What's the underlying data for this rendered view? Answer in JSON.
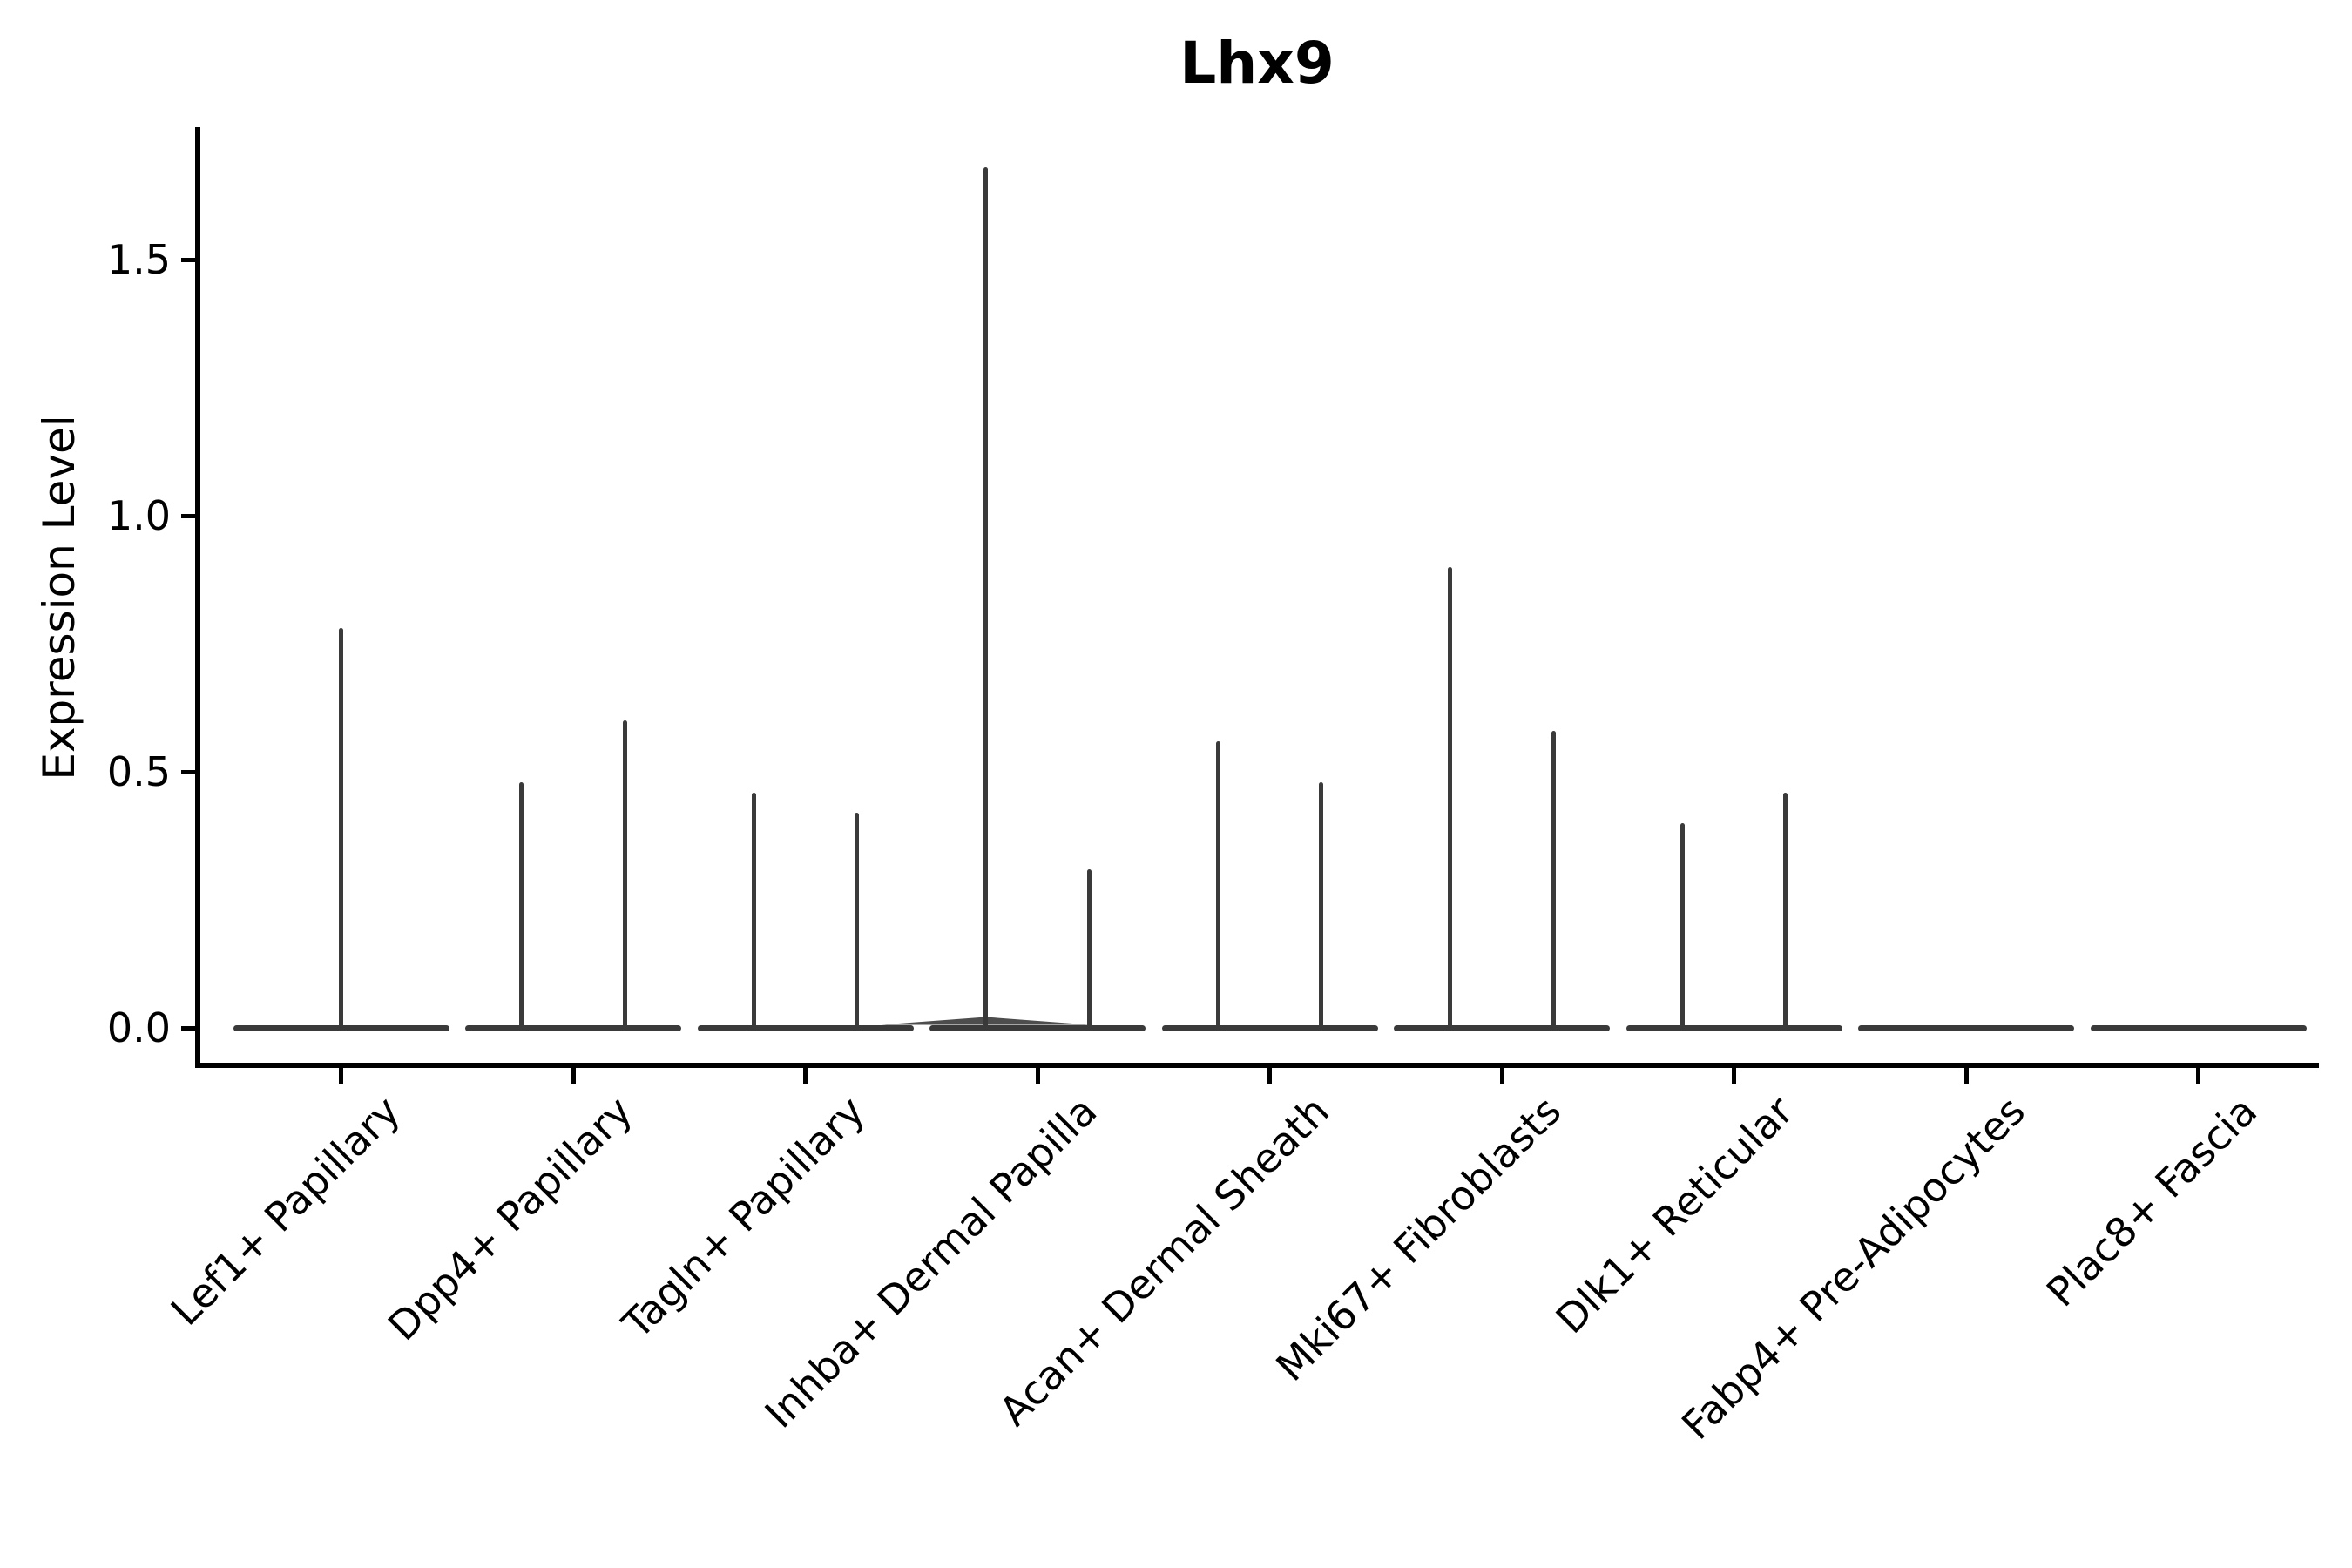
{
  "chart_data": {
    "type": "violin",
    "title": "Lhx9",
    "xlabel": "",
    "ylabel": "Expression Level",
    "ylim": [
      -0.07,
      1.78
    ],
    "yticks": [
      0.0,
      0.5,
      1.0,
      1.5
    ],
    "ytick_labels": [
      "0.0",
      "0.5",
      "1.0",
      "1.5"
    ],
    "grid": false,
    "legend": "none",
    "violin_line_color": "#3a3a3a",
    "axis_color": "#000000",
    "background_color": "#ffffff",
    "categories": [
      "Lef1+ Papillary",
      "Dpp4+ Papillary",
      "Tagln+ Papillary",
      "Inhba+ Dermal Papilla",
      "Acan+ Dermal Sheath",
      "Mki67+ Fibroblasts",
      "Dlk1+ Reticular",
      "Fabp4+ Pre-Adipocytes",
      "Plac8+ Fascia"
    ],
    "series": [
      {
        "category": "Lef1+ Papillary",
        "spike_values": [
          0.78
        ],
        "spike_offsets": [
          0
        ],
        "bulge_spike_index": null
      },
      {
        "category": "Dpp4+ Papillary",
        "spike_values": [
          0.48,
          0.6
        ],
        "spike_offsets": [
          -0.223,
          0.223
        ],
        "bulge_spike_index": null
      },
      {
        "category": "Tagln+ Papillary",
        "spike_values": [
          0.46,
          0.42
        ],
        "spike_offsets": [
          -0.223,
          0.223
        ],
        "bulge_spike_index": null
      },
      {
        "category": "Inhba+ Dermal Papilla",
        "spike_values": [
          1.68,
          0.31
        ],
        "spike_offsets": [
          -0.223,
          0.223
        ],
        "bulge_spike_index": 0
      },
      {
        "category": "Acan+ Dermal Sheath",
        "spike_values": [
          0.56,
          0.48
        ],
        "spike_offsets": [
          -0.223,
          0.223
        ],
        "bulge_spike_index": null
      },
      {
        "category": "Mki67+ Fibroblasts",
        "spike_values": [
          0.9,
          0.58
        ],
        "spike_offsets": [
          -0.223,
          0.223
        ],
        "bulge_spike_index": null
      },
      {
        "category": "Dlk1+ Reticular",
        "spike_values": [
          0.4,
          0.46
        ],
        "spike_offsets": [
          -0.223,
          0.223
        ],
        "bulge_spike_index": null
      },
      {
        "category": "Fabp4+ Pre-Adipocytes",
        "spike_values": [],
        "spike_offsets": [],
        "bulge_spike_index": null
      },
      {
        "category": "Plac8+ Fascia",
        "spike_values": [],
        "spike_offsets": [],
        "bulge_spike_index": null
      }
    ]
  }
}
